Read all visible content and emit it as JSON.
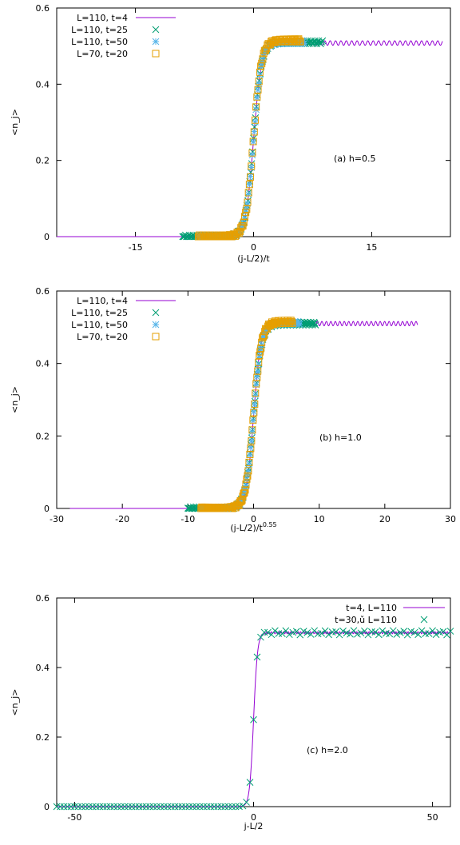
{
  "chart_data": [
    {
      "type": "line",
      "annotation": "(a) h=0.5",
      "xlabel": "(j-L/2)/t",
      "ylabel": "<n_j>",
      "xlim": [
        -25,
        25
      ],
      "ylim": [
        0,
        0.6
      ],
      "xticks": [
        -15,
        0,
        15
      ],
      "yticks": [
        0,
        0.2,
        0.4,
        0.6
      ],
      "legend_position": "top-left",
      "series": [
        {
          "name": "L=110, t=4",
          "kind": "line",
          "color": "#9400d3",
          "x_range": [
            -25,
            24
          ],
          "plateau": 0.508,
          "center": 0,
          "width": 0.5,
          "ripple": 0.006
        },
        {
          "name": "L=110, t=25",
          "kind": "marker",
          "marker": "cross",
          "color": "#009e73",
          "x_range": [
            -9,
            8.8
          ],
          "plateau": 0.51,
          "center": 0,
          "width": 0.5
        },
        {
          "name": "L=110, t=50",
          "kind": "marker",
          "marker": "star",
          "color": "#56b4e9",
          "x_range": [
            -7,
            6.5
          ],
          "plateau": 0.51,
          "center": 0,
          "width": 0.5
        },
        {
          "name": "L=70, t=20",
          "kind": "marker",
          "marker": "square",
          "color": "#e69f00",
          "x_range": [
            -7,
            6
          ],
          "plateau": 0.515,
          "center": 0,
          "width": 0.5
        }
      ]
    },
    {
      "type": "line",
      "annotation": "(b) h=1.0",
      "xlabel": "(j-L/2)/t",
      "xlabel_sup": "0.55",
      "ylabel": "<n_j>",
      "xlim": [
        -30,
        30
      ],
      "ylim": [
        0,
        0.6
      ],
      "xticks": [
        -30,
        -20,
        -10,
        0,
        10,
        20,
        30
      ],
      "yticks": [
        0,
        0.2,
        0.4,
        0.6
      ],
      "legend_position": "top-left",
      "series": [
        {
          "name": "L=110, t=4",
          "kind": "line",
          "color": "#9400d3",
          "x_range": [
            -28,
            25
          ],
          "plateau": 0.51,
          "center": 0,
          "width": 0.55,
          "ripple": 0.006
        },
        {
          "name": "L=110, t=25",
          "kind": "marker",
          "marker": "cross",
          "color": "#009e73",
          "x_range": [
            -10,
            9.5
          ],
          "plateau": 0.51,
          "center": 0,
          "width": 0.6
        },
        {
          "name": "L=110, t=50",
          "kind": "marker",
          "marker": "star",
          "color": "#56b4e9",
          "x_range": [
            -8,
            7
          ],
          "plateau": 0.512,
          "center": 0,
          "width": 0.6
        },
        {
          "name": "L=70, t=20",
          "kind": "marker",
          "marker": "square",
          "color": "#e69f00",
          "x_range": [
            -8,
            6
          ],
          "plateau": 0.515,
          "center": 0,
          "width": 0.6
        }
      ]
    },
    {
      "type": "line",
      "annotation": "(c) h=2.0",
      "xlabel": "j-L/2",
      "ylabel": "<n_j>",
      "xlim": [
        -55,
        55
      ],
      "ylim": [
        0,
        0.6
      ],
      "xticks": [
        -50,
        0,
        50
      ],
      "yticks": [
        0,
        0.2,
        0.4,
        0.6
      ],
      "legend_position": "top-right",
      "series": [
        {
          "name": "t=4, L=110",
          "kind": "line",
          "color": "#9400d3",
          "x_range": [
            -55,
            55
          ],
          "plateau": 0.5,
          "center": 0,
          "width": 0.55,
          "ripple": 0.003
        },
        {
          "name": "t=30,ǔ L=110",
          "kind": "marker",
          "marker": "cross",
          "color": "#009e73",
          "x_range": [
            -55,
            55
          ],
          "plateau": 0.5,
          "center": 0,
          "width": 0.55,
          "step": 1
        },
        {
          "name": "",
          "kind": "hidden"
        },
        {
          "name": "",
          "kind": "hidden"
        }
      ]
    }
  ]
}
